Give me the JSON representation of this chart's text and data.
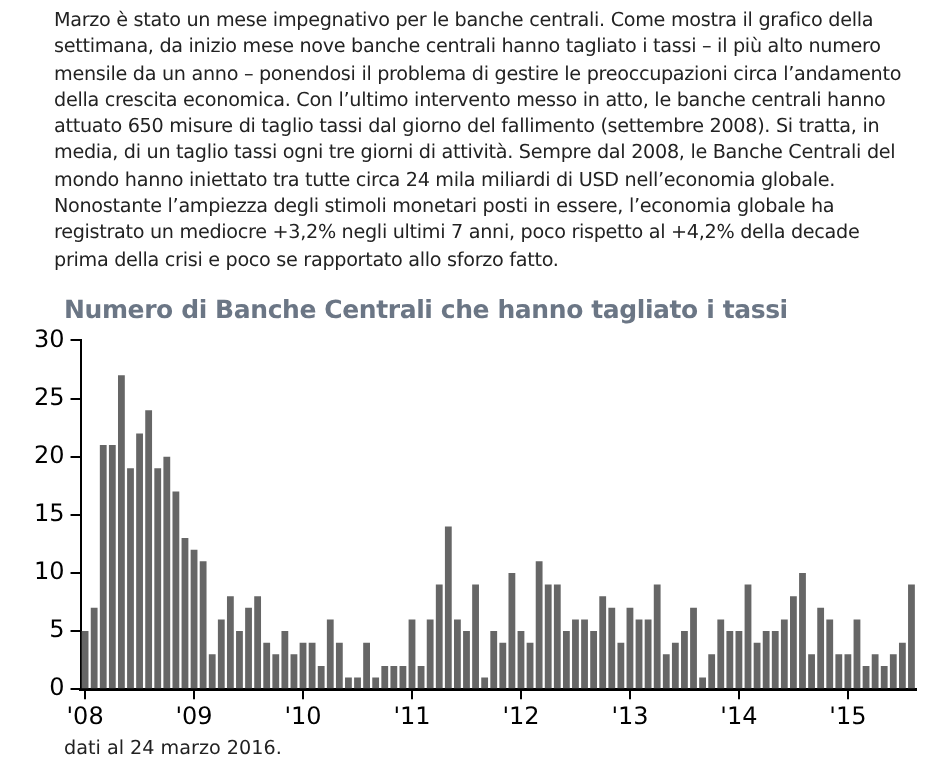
{
  "chart_data": {
    "type": "bar",
    "subtitle": "Marzo è stato un mese impegnativo per le banche centrali. Come mostra il grafico della settimana, da inizio mese nove banche centrali hanno tagliato i tassi – il più alto numero mensile da un anno – ponendosi il problema di gestire le preoccupazioni circa l’andamento della crescita economica. Con l’ultimo intervento messo in atto, le banche centrali hanno attuato 650 misure di taglio tassi dal giorno del fallimento (settembre 2008). Si tratta, in media, di un taglio tassi ogni tre giorni di attività. Sempre dal 2008, le Banche Centrali del mondo hanno iniettato tra tutte circa 24 mila miliardi di USD nell’economia globale. Nonostante l’ampiezza degli stimoli monetari posti in essere, l’economia globale ha registrato un mediocre +3,2% negli ultimi 7 anni, poco rispetto al +4,2% della decade prima della crisi e poco se rapportato allo sforzo fatto.",
    "title": "Numero di Banche Centrali che hanno tagliato i tassi",
    "categories": [
      "'08",
      null,
      null,
      null,
      null,
      null,
      null,
      null,
      null,
      null,
      null,
      null,
      "'09",
      null,
      null,
      null,
      null,
      null,
      null,
      null,
      null,
      null,
      null,
      null,
      "'10",
      null,
      null,
      null,
      null,
      null,
      null,
      null,
      null,
      null,
      null,
      null,
      "'11",
      null,
      null,
      null,
      null,
      null,
      null,
      null,
      null,
      null,
      null,
      null,
      "'12",
      null,
      null,
      null,
      null,
      null,
      null,
      null,
      null,
      null,
      null,
      null,
      "'13",
      null,
      null,
      null,
      null,
      null,
      null,
      null,
      null,
      null,
      null,
      null,
      "'14",
      null,
      null,
      null,
      null,
      null,
      null,
      null,
      null,
      null,
      null,
      null,
      "'15",
      null,
      null,
      null,
      null,
      null,
      null,
      null
    ],
    "values": [
      5,
      7,
      21,
      21,
      27,
      19,
      22,
      24,
      19,
      20,
      17,
      13,
      12,
      11,
      3,
      6,
      8,
      5,
      7,
      8,
      4,
      3,
      5,
      3,
      4,
      4,
      2,
      6,
      4,
      1,
      1,
      4,
      1,
      2,
      2,
      2,
      6,
      2,
      6,
      9,
      14,
      6,
      5,
      9,
      1,
      5,
      4,
      10,
      5,
      4,
      11,
      9,
      9,
      5,
      6,
      6,
      5,
      8,
      7,
      4,
      7,
      6,
      6,
      9,
      3,
      4,
      5,
      7,
      1,
      3,
      6,
      5,
      5,
      9,
      4,
      5,
      5,
      6,
      8,
      10,
      3,
      7,
      6,
      3,
      3,
      6,
      2,
      3,
      2,
      3,
      4,
      9
    ],
    "color": "#666666",
    "ylim": [
      0,
      30
    ],
    "yticks": [
      0,
      5,
      10,
      15,
      20,
      25,
      30
    ],
    "grid": false,
    "legend": false,
    "annotations": [
      "dati al 24 marzo 2016."
    ]
  }
}
